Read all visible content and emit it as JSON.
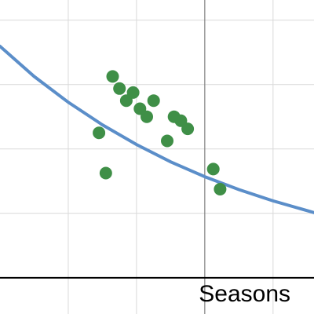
{
  "chart_data": {
    "type": "scatter",
    "xlabel": "Seasons",
    "ylabel": "",
    "xlim": [
      -6,
      3.2
    ],
    "ylim": [
      -0.9,
      6.9
    ],
    "grid": true,
    "x_gridlines": [
      -4,
      -2,
      0,
      2
    ],
    "y_gridlines": [
      0,
      1.6,
      3.2,
      4.8,
      6.4
    ],
    "series": [
      {
        "kind": "points",
        "color": "#3f8f47",
        "points": [
          {
            "x": -2.7,
            "y": 5.0
          },
          {
            "x": -2.5,
            "y": 4.7
          },
          {
            "x": -2.3,
            "y": 4.4
          },
          {
            "x": -2.1,
            "y": 4.6
          },
          {
            "x": -1.9,
            "y": 4.2
          },
          {
            "x": -1.7,
            "y": 4.0
          },
          {
            "x": -1.5,
            "y": 4.4
          },
          {
            "x": -0.9,
            "y": 4.0
          },
          {
            "x": -0.7,
            "y": 3.9
          },
          {
            "x": -0.5,
            "y": 3.7
          },
          {
            "x": -1.1,
            "y": 3.4
          },
          {
            "x": -3.1,
            "y": 3.6
          },
          {
            "x": -2.9,
            "y": 2.6
          },
          {
            "x": 0.25,
            "y": 2.7
          },
          {
            "x": 0.45,
            "y": 2.2
          }
        ]
      },
      {
        "kind": "curve",
        "color": "#5b8ec9",
        "points": [
          {
            "x": -6,
            "y": 5.75
          },
          {
            "x": -5,
            "y": 5.0
          },
          {
            "x": -4,
            "y": 4.36
          },
          {
            "x": -3,
            "y": 3.8
          },
          {
            "x": -2,
            "y": 3.31
          },
          {
            "x": -1,
            "y": 2.88
          },
          {
            "x": 0,
            "y": 2.51
          },
          {
            "x": 1,
            "y": 2.19
          },
          {
            "x": 2,
            "y": 1.91
          },
          {
            "x": 3.2,
            "y": 1.62
          }
        ]
      }
    ]
  }
}
